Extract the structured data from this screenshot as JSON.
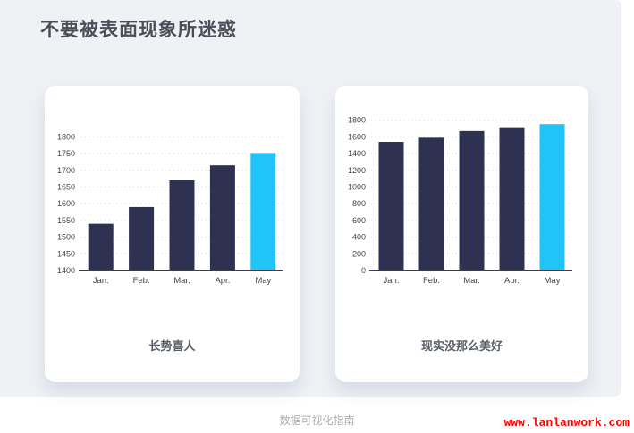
{
  "page": {
    "title": "不要被表面现象所迷惑",
    "footer_caption": "数据可视化指南",
    "footer_site": "www.lanlanwork.com"
  },
  "colors": {
    "panel_bg": "#eff1f5",
    "card_bg": "#ffffff",
    "bar": "#2f3152",
    "bar_highlight": "#20c4f8",
    "grid": "#d9dbe2",
    "axis": "#3c3f46",
    "tick_text": "#41454c",
    "title_text": "#4b4f58",
    "caption_text": "#585d66",
    "footer_text": "#a8aaae",
    "site_text": "#fe0000"
  },
  "chart_data": [
    {
      "type": "bar",
      "title": "长势喜人",
      "categories": [
        "Jan.",
        "Feb.",
        "Mar.",
        "Apr.",
        "May"
      ],
      "values": [
        1540,
        1590,
        1670,
        1715,
        1752
      ],
      "highlight_index": 4,
      "ylim": [
        1400,
        1800
      ],
      "ystep": 50,
      "yticks": [
        1400,
        1450,
        1500,
        1550,
        1600,
        1650,
        1700,
        1750,
        1800
      ],
      "xlabel": "",
      "ylabel": "",
      "grid": "horizontal-dotted",
      "legend": "none"
    },
    {
      "type": "bar",
      "title": "现实没那么美好",
      "categories": [
        "Jan.",
        "Feb.",
        "Mar.",
        "Apr.",
        "May"
      ],
      "values": [
        1540,
        1590,
        1670,
        1715,
        1752
      ],
      "highlight_index": 4,
      "ylim": [
        0,
        1800
      ],
      "ystep": 200,
      "yticks": [
        0,
        200,
        400,
        600,
        800,
        1000,
        1200,
        1400,
        1600,
        1800
      ],
      "xlabel": "",
      "ylabel": "",
      "grid": "horizontal-dotted",
      "legend": "none"
    }
  ]
}
